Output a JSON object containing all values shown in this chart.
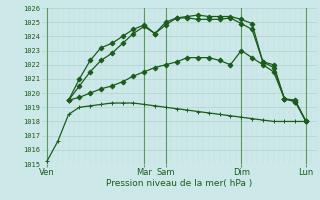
{
  "bg_color": "#cce8e8",
  "grid_color_major": "#aacece",
  "grid_color_minor": "#c0dcdc",
  "line_color": "#1a5c1a",
  "xlabel": "Pression niveau de la mer( hPa )",
  "ylim": [
    1015,
    1026
  ],
  "yticks": [
    1015,
    1016,
    1017,
    1018,
    1019,
    1020,
    1021,
    1022,
    1023,
    1024,
    1025,
    1026
  ],
  "xtick_labels": [
    "Ven",
    "Mar",
    "Sam",
    "Dim",
    "Lun"
  ],
  "xtick_positions": [
    0,
    9,
    11,
    18,
    24
  ],
  "vline_positions": [
    0,
    9,
    11,
    18,
    24
  ],
  "xlim": [
    -0.5,
    25
  ],
  "series": [
    {
      "x": [
        0,
        1,
        2,
        3,
        4,
        5,
        6,
        7,
        8,
        9,
        10,
        11,
        12,
        13,
        14,
        15,
        16,
        17,
        18,
        19,
        20,
        21,
        22,
        23,
        24
      ],
      "y": [
        1015.2,
        1016.6,
        1018.5,
        1019.0,
        1019.1,
        1019.2,
        1019.3,
        1019.3,
        1019.3,
        1019.2,
        1019.1,
        1019.0,
        1018.9,
        1018.8,
        1018.7,
        1018.6,
        1018.5,
        1018.4,
        1018.3,
        1018.2,
        1018.1,
        1018.0,
        1018.0,
        1018.0,
        1018.0
      ],
      "marker": "+"
    },
    {
      "x": [
        2,
        3,
        4,
        5,
        6,
        7,
        8,
        9,
        10,
        11,
        12,
        13,
        14,
        15,
        16,
        17,
        18,
        19,
        20,
        21,
        22,
        23,
        24
      ],
      "y": [
        1019.5,
        1019.7,
        1020.0,
        1020.3,
        1020.5,
        1020.8,
        1021.2,
        1021.5,
        1021.8,
        1022.0,
        1022.2,
        1022.5,
        1022.5,
        1022.5,
        1022.3,
        1022.0,
        1023.0,
        1022.5,
        1022.0,
        1021.5,
        1019.6,
        1019.5,
        1018.0
      ],
      "marker": "D"
    },
    {
      "x": [
        2,
        3,
        4,
        5,
        6,
        7,
        8,
        9,
        10,
        11,
        12,
        13,
        14,
        15,
        16,
        17,
        18,
        19,
        20,
        21,
        22,
        23,
        24
      ],
      "y": [
        1019.5,
        1020.5,
        1021.5,
        1022.3,
        1022.8,
        1023.5,
        1024.2,
        1024.7,
        1024.2,
        1024.8,
        1025.3,
        1025.3,
        1025.2,
        1025.2,
        1025.2,
        1025.3,
        1024.9,
        1024.5,
        1022.2,
        1021.8,
        1019.6,
        1019.4,
        1018.0
      ],
      "marker": "D"
    },
    {
      "x": [
        2,
        3,
        4,
        5,
        6,
        7,
        8,
        9,
        10,
        11,
        12,
        13,
        14,
        15,
        16,
        17,
        18,
        19,
        20,
        21,
        22,
        23,
        24
      ],
      "y": [
        1019.5,
        1021.0,
        1022.3,
        1023.2,
        1023.5,
        1024.0,
        1024.5,
        1024.8,
        1024.2,
        1025.0,
        1025.3,
        1025.4,
        1025.5,
        1025.4,
        1025.4,
        1025.4,
        1025.2,
        1024.9,
        1022.2,
        1022.0,
        1019.6,
        1019.4,
        1018.0
      ],
      "marker": "D"
    }
  ]
}
